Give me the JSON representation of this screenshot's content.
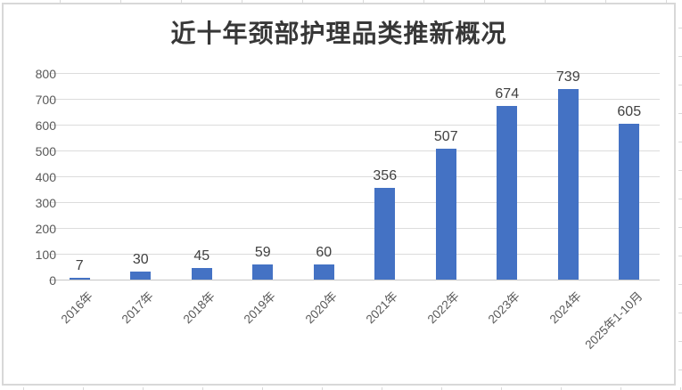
{
  "chart_data": {
    "type": "bar",
    "title": "近十年颈部护理品类推新概况",
    "categories": [
      "2016年",
      "2017年",
      "2018年",
      "2019年",
      "2020年",
      "2021年",
      "2022年",
      "2023年",
      "2024年",
      "2025年1-10月"
    ],
    "values": [
      7,
      30,
      45,
      59,
      60,
      356,
      507,
      674,
      739,
      605
    ],
    "xlabel": "",
    "ylabel": "",
    "ylim": [
      0,
      800
    ],
    "ytick_step": 100,
    "grid": true,
    "legend_position": "none",
    "data_labels_shown": true,
    "colors": {
      "bar": "#4472C4",
      "gridline": "#dcdcdc",
      "axis_line": "#c6c6c6",
      "tick_label": "#595959",
      "data_label": "#404040",
      "title": "#373737",
      "chart_border": "#d8d8d8"
    }
  }
}
